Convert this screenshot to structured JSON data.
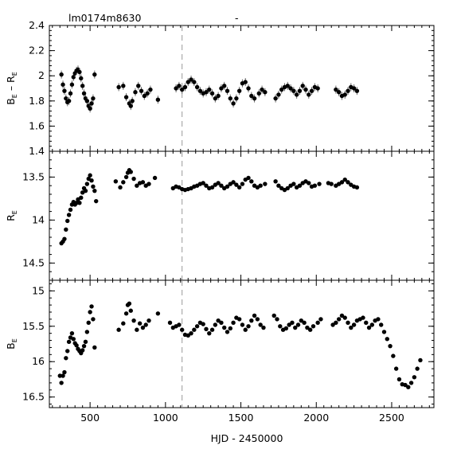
{
  "header": {
    "object_id": "lm0174m8630",
    "tag": "-"
  },
  "chart_data": {
    "type": "scatter",
    "xlabel": "HJD - 2450000",
    "xlim": [
      230,
      2780
    ],
    "xticks": [
      500,
      1000,
      1500,
      2000,
      2500
    ],
    "marker_line_x": 1110,
    "panels": [
      {
        "name": "color",
        "ylabel": "B_E – R_E",
        "ylabel_main": "B",
        "ylabel_sub1": "E",
        "ylabel_dash": "–",
        "ylabel_main2": "R",
        "ylabel_sub2": "E",
        "ylim": [
          1.4,
          2.4
        ],
        "inverted": false,
        "yticks": [
          "1.4",
          "1.6",
          "1.8",
          "2",
          "2.2",
          "2.4"
        ],
        "ytick_values": [
          1.4,
          1.6,
          1.8,
          2.0,
          2.2,
          2.4
        ],
        "points": [
          [
            310,
            2.01
          ],
          [
            320,
            1.93
          ],
          [
            330,
            1.88
          ],
          [
            340,
            1.82
          ],
          [
            350,
            1.79
          ],
          [
            360,
            1.8
          ],
          [
            370,
            1.86
          ],
          [
            380,
            1.93
          ],
          [
            390,
            1.99
          ],
          [
            400,
            2.02
          ],
          [
            410,
            2.04
          ],
          [
            420,
            2.05
          ],
          [
            430,
            2.03
          ],
          [
            440,
            1.98
          ],
          [
            450,
            1.92
          ],
          [
            460,
            1.86
          ],
          [
            470,
            1.82
          ],
          [
            480,
            1.8
          ],
          [
            490,
            1.76
          ],
          [
            500,
            1.74
          ],
          [
            510,
            1.78
          ],
          [
            520,
            1.82
          ],
          [
            530,
            2.01
          ],
          [
            690,
            1.91
          ],
          [
            720,
            1.92
          ],
          [
            740,
            1.83
          ],
          [
            760,
            1.78
          ],
          [
            770,
            1.76
          ],
          [
            780,
            1.8
          ],
          [
            800,
            1.87
          ],
          [
            820,
            1.92
          ],
          [
            840,
            1.88
          ],
          [
            860,
            1.84
          ],
          [
            880,
            1.86
          ],
          [
            900,
            1.89
          ],
          [
            950,
            1.81
          ],
          [
            1070,
            1.9
          ],
          [
            1090,
            1.92
          ],
          [
            1110,
            1.89
          ],
          [
            1130,
            1.91
          ],
          [
            1150,
            1.95
          ],
          [
            1170,
            1.97
          ],
          [
            1190,
            1.95
          ],
          [
            1210,
            1.91
          ],
          [
            1230,
            1.88
          ],
          [
            1250,
            1.86
          ],
          [
            1270,
            1.87
          ],
          [
            1290,
            1.89
          ],
          [
            1310,
            1.86
          ],
          [
            1330,
            1.82
          ],
          [
            1350,
            1.84
          ],
          [
            1370,
            1.9
          ],
          [
            1390,
            1.92
          ],
          [
            1410,
            1.88
          ],
          [
            1430,
            1.82
          ],
          [
            1450,
            1.78
          ],
          [
            1470,
            1.82
          ],
          [
            1490,
            1.88
          ],
          [
            1510,
            1.94
          ],
          [
            1530,
            1.95
          ],
          [
            1550,
            1.9
          ],
          [
            1570,
            1.84
          ],
          [
            1590,
            1.82
          ],
          [
            1620,
            1.86
          ],
          [
            1640,
            1.89
          ],
          [
            1660,
            1.87
          ],
          [
            1730,
            1.82
          ],
          [
            1750,
            1.85
          ],
          [
            1770,
            1.89
          ],
          [
            1790,
            1.91
          ],
          [
            1810,
            1.92
          ],
          [
            1830,
            1.9
          ],
          [
            1850,
            1.88
          ],
          [
            1870,
            1.85
          ],
          [
            1890,
            1.88
          ],
          [
            1910,
            1.92
          ],
          [
            1930,
            1.89
          ],
          [
            1950,
            1.85
          ],
          [
            1970,
            1.88
          ],
          [
            1990,
            1.91
          ],
          [
            2010,
            1.9
          ],
          [
            2130,
            1.89
          ],
          [
            2150,
            1.87
          ],
          [
            2170,
            1.84
          ],
          [
            2190,
            1.85
          ],
          [
            2210,
            1.88
          ],
          [
            2230,
            1.91
          ],
          [
            2250,
            1.9
          ],
          [
            2270,
            1.88
          ]
        ]
      },
      {
        "name": "red",
        "ylabel": "R_E",
        "ylabel_main": "R",
        "ylabel_sub1": "E",
        "ylim": [
          14.7,
          13.2
        ],
        "inverted": true,
        "yticks": [
          "13.5",
          "14",
          "14.5"
        ],
        "ytick_values": [
          13.5,
          14.0,
          14.5
        ],
        "points": [
          [
            310,
            14.27
          ],
          [
            320,
            14.25
          ],
          [
            330,
            14.22
          ],
          [
            340,
            14.11
          ],
          [
            350,
            14.01
          ],
          [
            360,
            13.94
          ],
          [
            370,
            13.88
          ],
          [
            380,
            13.82
          ],
          [
            390,
            13.79
          ],
          [
            400,
            13.82
          ],
          [
            410,
            13.8
          ],
          [
            420,
            13.76
          ],
          [
            430,
            13.8
          ],
          [
            440,
            13.74
          ],
          [
            450,
            13.68
          ],
          [
            460,
            13.63
          ],
          [
            470,
            13.66
          ],
          [
            480,
            13.58
          ],
          [
            490,
            13.52
          ],
          [
            500,
            13.48
          ],
          [
            510,
            13.54
          ],
          [
            520,
            13.61
          ],
          [
            530,
            13.66
          ],
          [
            540,
            13.78
          ],
          [
            670,
            13.55
          ],
          [
            700,
            13.62
          ],
          [
            720,
            13.56
          ],
          [
            740,
            13.5
          ],
          [
            750,
            13.45
          ],
          [
            760,
            13.42
          ],
          [
            770,
            13.44
          ],
          [
            790,
            13.52
          ],
          [
            810,
            13.6
          ],
          [
            830,
            13.57
          ],
          [
            850,
            13.56
          ],
          [
            870,
            13.6
          ],
          [
            890,
            13.58
          ],
          [
            930,
            13.51
          ],
          [
            1050,
            13.63
          ],
          [
            1070,
            13.61
          ],
          [
            1090,
            13.62
          ],
          [
            1110,
            13.64
          ],
          [
            1130,
            13.65
          ],
          [
            1150,
            13.64
          ],
          [
            1170,
            13.63
          ],
          [
            1190,
            13.61
          ],
          [
            1210,
            13.6
          ],
          [
            1230,
            13.58
          ],
          [
            1250,
            13.57
          ],
          [
            1270,
            13.6
          ],
          [
            1290,
            13.63
          ],
          [
            1310,
            13.62
          ],
          [
            1330,
            13.59
          ],
          [
            1350,
            13.57
          ],
          [
            1370,
            13.6
          ],
          [
            1390,
            13.63
          ],
          [
            1410,
            13.61
          ],
          [
            1430,
            13.58
          ],
          [
            1450,
            13.56
          ],
          [
            1470,
            13.59
          ],
          [
            1490,
            13.62
          ],
          [
            1510,
            13.58
          ],
          [
            1530,
            13.53
          ],
          [
            1550,
            13.51
          ],
          [
            1570,
            13.55
          ],
          [
            1590,
            13.6
          ],
          [
            1610,
            13.62
          ],
          [
            1630,
            13.6
          ],
          [
            1660,
            13.58
          ],
          [
            1730,
            13.55
          ],
          [
            1750,
            13.6
          ],
          [
            1770,
            13.63
          ],
          [
            1790,
            13.65
          ],
          [
            1810,
            13.63
          ],
          [
            1830,
            13.6
          ],
          [
            1850,
            13.58
          ],
          [
            1870,
            13.62
          ],
          [
            1890,
            13.6
          ],
          [
            1910,
            13.57
          ],
          [
            1930,
            13.55
          ],
          [
            1950,
            13.57
          ],
          [
            1970,
            13.61
          ],
          [
            1990,
            13.6
          ],
          [
            2020,
            13.58
          ],
          [
            2080,
            13.57
          ],
          [
            2100,
            13.58
          ],
          [
            2130,
            13.6
          ],
          [
            2150,
            13.58
          ],
          [
            2170,
            13.56
          ],
          [
            2190,
            13.53
          ],
          [
            2210,
            13.56
          ],
          [
            2230,
            13.59
          ],
          [
            2250,
            13.61
          ],
          [
            2270,
            13.62
          ]
        ]
      },
      {
        "name": "blue",
        "ylabel": "B_E",
        "ylabel_main": "B",
        "ylabel_sub1": "E",
        "ylim": [
          16.65,
          14.85
        ],
        "inverted": true,
        "yticks": [
          "15",
          "15.5",
          "16",
          "16.5"
        ],
        "ytick_values": [
          15.0,
          15.5,
          16.0,
          16.5
        ],
        "points": [
          [
            300,
            16.2
          ],
          [
            310,
            16.3
          ],
          [
            320,
            16.2
          ],
          [
            330,
            16.15
          ],
          [
            340,
            15.95
          ],
          [
            350,
            15.85
          ],
          [
            360,
            15.72
          ],
          [
            370,
            15.66
          ],
          [
            380,
            15.6
          ],
          [
            390,
            15.68
          ],
          [
            400,
            15.74
          ],
          [
            410,
            15.77
          ],
          [
            420,
            15.82
          ],
          [
            430,
            15.85
          ],
          [
            440,
            15.88
          ],
          [
            450,
            15.84
          ],
          [
            460,
            15.78
          ],
          [
            470,
            15.72
          ],
          [
            480,
            15.58
          ],
          [
            490,
            15.45
          ],
          [
            500,
            15.3
          ],
          [
            510,
            15.22
          ],
          [
            520,
            15.4
          ],
          [
            530,
            15.8
          ],
          [
            690,
            15.55
          ],
          [
            720,
            15.46
          ],
          [
            740,
            15.32
          ],
          [
            750,
            15.2
          ],
          [
            760,
            15.18
          ],
          [
            770,
            15.28
          ],
          [
            790,
            15.42
          ],
          [
            810,
            15.55
          ],
          [
            830,
            15.46
          ],
          [
            850,
            15.52
          ],
          [
            870,
            15.48
          ],
          [
            890,
            15.42
          ],
          [
            950,
            15.32
          ],
          [
            1030,
            15.45
          ],
          [
            1050,
            15.52
          ],
          [
            1070,
            15.5
          ],
          [
            1090,
            15.48
          ],
          [
            1110,
            15.55
          ],
          [
            1130,
            15.62
          ],
          [
            1150,
            15.63
          ],
          [
            1170,
            15.6
          ],
          [
            1190,
            15.55
          ],
          [
            1210,
            15.5
          ],
          [
            1230,
            15.45
          ],
          [
            1250,
            15.47
          ],
          [
            1270,
            15.54
          ],
          [
            1290,
            15.6
          ],
          [
            1310,
            15.55
          ],
          [
            1330,
            15.48
          ],
          [
            1350,
            15.42
          ],
          [
            1370,
            15.45
          ],
          [
            1390,
            15.52
          ],
          [
            1410,
            15.58
          ],
          [
            1430,
            15.53
          ],
          [
            1450,
            15.45
          ],
          [
            1470,
            15.38
          ],
          [
            1490,
            15.4
          ],
          [
            1510,
            15.48
          ],
          [
            1530,
            15.55
          ],
          [
            1550,
            15.5
          ],
          [
            1570,
            15.42
          ],
          [
            1590,
            15.35
          ],
          [
            1610,
            15.4
          ],
          [
            1630,
            15.48
          ],
          [
            1650,
            15.52
          ],
          [
            1720,
            15.35
          ],
          [
            1740,
            15.4
          ],
          [
            1760,
            15.5
          ],
          [
            1780,
            15.55
          ],
          [
            1800,
            15.53
          ],
          [
            1820,
            15.48
          ],
          [
            1840,
            15.45
          ],
          [
            1860,
            15.52
          ],
          [
            1880,
            15.48
          ],
          [
            1900,
            15.42
          ],
          [
            1920,
            15.45
          ],
          [
            1940,
            15.52
          ],
          [
            1960,
            15.55
          ],
          [
            1980,
            15.5
          ],
          [
            2010,
            15.45
          ],
          [
            2030,
            15.4
          ],
          [
            2110,
            15.48
          ],
          [
            2130,
            15.45
          ],
          [
            2150,
            15.4
          ],
          [
            2170,
            15.35
          ],
          [
            2190,
            15.38
          ],
          [
            2210,
            15.45
          ],
          [
            2230,
            15.52
          ],
          [
            2250,
            15.48
          ],
          [
            2270,
            15.42
          ],
          [
            2290,
            15.4
          ],
          [
            2310,
            15.38
          ],
          [
            2330,
            15.45
          ],
          [
            2350,
            15.52
          ],
          [
            2370,
            15.48
          ],
          [
            2390,
            15.42
          ],
          [
            2410,
            15.4
          ],
          [
            2430,
            15.48
          ],
          [
            2450,
            15.58
          ],
          [
            2470,
            15.68
          ],
          [
            2490,
            15.78
          ],
          [
            2510,
            15.92
          ],
          [
            2530,
            16.1
          ],
          [
            2550,
            16.25
          ],
          [
            2570,
            16.32
          ],
          [
            2590,
            16.33
          ],
          [
            2610,
            16.36
          ],
          [
            2630,
            16.3
          ],
          [
            2650,
            16.22
          ],
          [
            2670,
            16.1
          ],
          [
            2690,
            15.98
          ]
        ]
      }
    ]
  }
}
